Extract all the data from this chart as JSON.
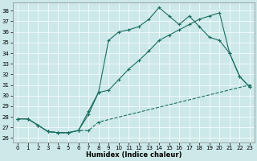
{
  "xlabel": "Humidex (Indice chaleur)",
  "bg_color": "#cce8e8",
  "line_color": "#1a6e60",
  "grid_color": "#aad4d4",
  "xlim": [
    -0.5,
    23.5
  ],
  "ylim": [
    25.6,
    38.8
  ],
  "yticks": [
    26,
    27,
    28,
    29,
    30,
    31,
    32,
    33,
    34,
    35,
    36,
    37,
    38
  ],
  "xticks": [
    0,
    1,
    2,
    3,
    4,
    5,
    6,
    7,
    8,
    9,
    10,
    11,
    12,
    13,
    14,
    15,
    16,
    17,
    18,
    19,
    20,
    21,
    22,
    23
  ],
  "line1": {
    "x": [
      0,
      1,
      2,
      3,
      4,
      5,
      6,
      7,
      8,
      23
    ],
    "y": [
      27.8,
      27.8,
      27.2,
      26.6,
      26.5,
      26.5,
      26.7,
      26.7,
      27.5,
      31.0
    ]
  },
  "line2": {
    "x": [
      0,
      1,
      2,
      3,
      4,
      5,
      6,
      7,
      8,
      9,
      10,
      11,
      12,
      13,
      14,
      15,
      16,
      17,
      18,
      19,
      20,
      21,
      22,
      23
    ],
    "y": [
      27.8,
      27.8,
      27.2,
      26.6,
      26.5,
      26.5,
      26.7,
      28.2,
      30.3,
      30.5,
      31.5,
      32.5,
      33.3,
      34.2,
      35.2,
      35.7,
      36.2,
      36.7,
      37.2,
      37.5,
      37.8,
      34.0,
      31.8,
      30.8
    ]
  },
  "line3": {
    "x": [
      0,
      1,
      2,
      3,
      4,
      5,
      6,
      7,
      8,
      9,
      10,
      11,
      12,
      13,
      14,
      15,
      16,
      17,
      18,
      19,
      20,
      21,
      22,
      23
    ],
    "y": [
      27.8,
      27.8,
      27.2,
      26.6,
      26.5,
      26.5,
      26.7,
      28.5,
      30.3,
      35.2,
      36.0,
      36.2,
      36.5,
      37.2,
      38.3,
      37.5,
      36.7,
      37.5,
      36.5,
      35.5,
      35.2,
      34.0,
      31.8,
      30.8
    ]
  },
  "marker_x3": [
    0,
    2,
    4,
    7,
    8,
    10,
    11,
    13,
    14,
    15,
    16,
    17,
    21,
    23
  ],
  "marker_x2": [
    0,
    2,
    4,
    7,
    8,
    20,
    21,
    23
  ],
  "marker_x1": [
    0,
    1,
    4,
    7,
    8,
    23
  ]
}
